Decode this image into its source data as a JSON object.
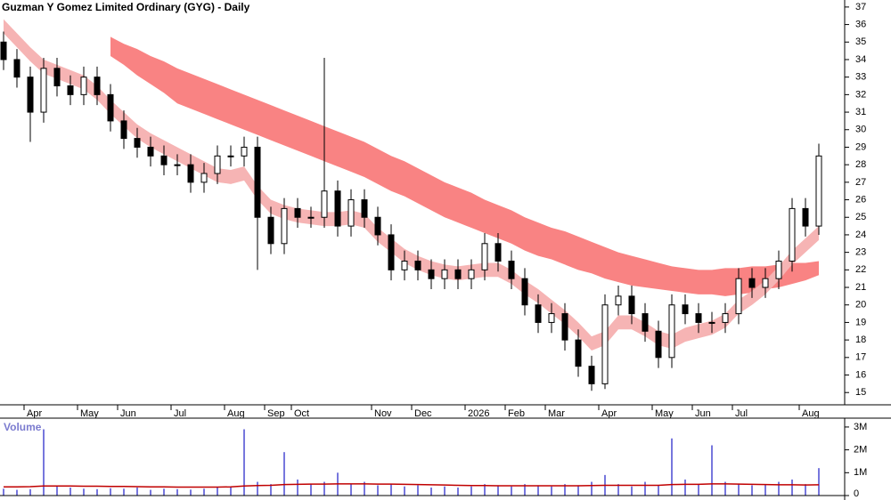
{
  "chart_data": [
    {
      "type": "candlestick",
      "title": "Guzman Y Gomez Limited Ordinary (GYG) - Daily",
      "categories": [
        null,
        null,
        "Apr",
        null,
        null,
        null,
        "May",
        null,
        null,
        "Jun",
        null,
        null,
        null,
        "Jul",
        null,
        null,
        null,
        "Aug",
        null,
        null,
        "Sep",
        null,
        "Oct",
        null,
        null,
        null,
        null,
        null,
        "Nov",
        null,
        null,
        "Dec",
        null,
        null,
        null,
        "2026",
        null,
        null,
        "Feb",
        null,
        null,
        "Mar",
        null,
        null,
        null,
        "Apr",
        null,
        null,
        null,
        "May",
        null,
        null,
        "Jun",
        null,
        null,
        "Jul",
        null,
        null,
        null,
        null,
        "Aug",
        null
      ],
      "open": [
        35,
        34,
        33,
        31,
        33.5,
        32.5,
        32,
        33,
        32,
        30.5,
        29.5,
        29,
        28.5,
        28,
        28,
        27,
        27.5,
        28.5,
        28.5,
        29,
        25,
        23.5,
        25.5,
        25,
        25,
        26.5,
        24.5,
        26,
        25,
        24,
        22,
        22.5,
        22,
        21.5,
        22,
        21.5,
        22,
        23.5,
        22.5,
        21.5,
        20,
        19,
        19.5,
        18,
        16.5,
        15.5,
        20,
        20.5,
        19.5,
        18.5,
        17,
        20,
        19.5,
        19,
        19,
        19.5,
        21.5,
        21,
        21.5,
        22.5,
        25.5,
        24.5
      ],
      "high": [
        35.6,
        34.6,
        33.6,
        34.1,
        34.1,
        33.1,
        33.6,
        33.6,
        32.6,
        31.1,
        30.1,
        29.6,
        29.1,
        28.6,
        28.6,
        28.1,
        29.1,
        29.1,
        29.6,
        29.6,
        25.6,
        26.1,
        26.1,
        25.6,
        34.1,
        27.1,
        26.6,
        26.6,
        25.6,
        24.6,
        23.1,
        23.1,
        22.6,
        22.6,
        22.6,
        22.6,
        24.1,
        24.1,
        23.1,
        22.1,
        20.6,
        20.1,
        20.1,
        18.6,
        17.1,
        20.6,
        21.1,
        21.1,
        20.1,
        19.1,
        20.6,
        20.6,
        20.1,
        19.6,
        20.1,
        22.1,
        22.1,
        22.1,
        23.1,
        26.1,
        26.1,
        29.2
      ],
      "low": [
        33.4,
        32.4,
        29.3,
        30.4,
        31.9,
        31.4,
        31.4,
        31.4,
        29.9,
        28.9,
        28.4,
        27.9,
        27.4,
        27.4,
        26.4,
        26.4,
        26.9,
        27.9,
        27.9,
        22,
        22.9,
        22.9,
        24.4,
        24.4,
        24.4,
        23.9,
        23.9,
        24.4,
        23.4,
        21.4,
        21.4,
        21.4,
        20.9,
        20.9,
        20.9,
        20.9,
        21.4,
        21.9,
        20.9,
        19.4,
        18.4,
        18.4,
        17.4,
        15.9,
        15.1,
        15.2,
        19.4,
        18.9,
        17.9,
        16.4,
        16.4,
        18.9,
        18.4,
        18.4,
        18.4,
        18.9,
        20.4,
        20.4,
        20.9,
        21.9,
        23.9,
        24
      ],
      "close": [
        34,
        33,
        31,
        33.5,
        32.5,
        32,
        33,
        32,
        30.5,
        29.5,
        29,
        28.5,
        28,
        28,
        27,
        27.5,
        28.5,
        28.5,
        29,
        25,
        23.5,
        25.5,
        25,
        25,
        26.5,
        24.5,
        26,
        25,
        24,
        22,
        22.5,
        22,
        21.5,
        22,
        21.5,
        22,
        23.5,
        22.5,
        21.5,
        20,
        19,
        19.5,
        18,
        16.5,
        15.5,
        20,
        20.5,
        19.5,
        18.5,
        17,
        20,
        19.5,
        19,
        19,
        19.5,
        21.5,
        21,
        21.5,
        22.5,
        25.5,
        24.5,
        28.5
      ],
      "bands": [
        {
          "color": "#f98383",
          "upper": [
            null,
            null,
            null,
            null,
            null,
            null,
            null,
            null,
            35.3,
            34.9,
            34.6,
            34.2,
            33.9,
            33.5,
            33.2,
            32.9,
            32.6,
            32.3,
            32,
            31.7,
            31.4,
            31.1,
            30.8,
            30.5,
            30.2,
            29.9,
            29.6,
            29.3,
            28.9,
            28.5,
            28.2,
            27.8,
            27.4,
            27,
            26.7,
            26.4,
            26,
            25.7,
            25.4,
            25,
            24.7,
            24.4,
            24.2,
            23.9,
            23.6,
            23.3,
            23,
            22.8,
            22.6,
            22.4,
            22.2,
            22.1,
            22,
            22,
            22.1,
            22.1,
            22.2,
            22.2,
            22.3,
            22.4,
            22.4,
            22.5
          ],
          "lower": [
            null,
            null,
            null,
            null,
            null,
            null,
            null,
            null,
            34.2,
            33.7,
            33.1,
            32.6,
            32.1,
            31.5,
            31.2,
            30.9,
            30.6,
            30.3,
            30,
            29.7,
            29.4,
            29.1,
            28.8,
            28.5,
            28.2,
            27.9,
            27.6,
            27.3,
            26.9,
            26.5,
            26.2,
            25.8,
            25.4,
            25,
            24.7,
            24.4,
            24.1,
            23.8,
            23.5,
            23.1,
            22.8,
            22.6,
            22.3,
            22,
            21.8,
            21.5,
            21.3,
            21.1,
            21,
            20.9,
            20.8,
            20.7,
            20.6,
            20.6,
            20.5,
            20.6,
            20.7,
            20.9,
            21,
            21.2,
            21.4,
            21.7
          ]
        },
        {
          "color": "#f6b4b4",
          "upper": [
            36.3,
            35.5,
            34.7,
            34,
            33.7,
            33.4,
            33.1,
            32.5,
            31.7,
            31,
            30.3,
            29.8,
            29.4,
            29,
            28.6,
            28.2,
            27.8,
            27.7,
            27.9,
            26.8,
            26,
            25.7,
            25.5,
            25.4,
            25.3,
            25.3,
            25.4,
            25.2,
            24.4,
            23.8,
            23.2,
            22.8,
            22.5,
            22.3,
            22.2,
            22.3,
            22.4,
            22.4,
            22,
            21.4,
            20.9,
            20.3,
            19.7,
            19,
            18.2,
            18.5,
            19.4,
            19.4,
            19,
            18.5,
            18.3,
            18.7,
            18.9,
            19.1,
            19.5,
            20.3,
            20.8,
            21.4,
            22.2,
            23.1,
            23.8,
            24.5
          ],
          "lower": [
            35.5,
            34.7,
            33.9,
            33.2,
            32.9,
            32.6,
            32.3,
            31.7,
            30.9,
            30.2,
            29.5,
            29,
            28.6,
            28.2,
            27.8,
            27.4,
            27,
            26.9,
            27.1,
            26,
            25.2,
            24.9,
            24.7,
            24.6,
            24.5,
            24.5,
            24.6,
            24.4,
            23.6,
            23,
            22.4,
            22,
            21.7,
            21.5,
            21.4,
            21.5,
            21.6,
            21.6,
            21.2,
            20.6,
            20.1,
            19.5,
            18.9,
            18.2,
            17.4,
            17.7,
            18.6,
            18.6,
            18.2,
            17.7,
            17.5,
            17.9,
            18.1,
            18.3,
            18.7,
            19.5,
            20,
            20.6,
            21.4,
            22.3,
            23,
            23.7
          ]
        }
      ],
      "ylim": [
        14.3,
        37.4
      ],
      "yticks": [
        15,
        16,
        17,
        18,
        19,
        20,
        21,
        22,
        23,
        24,
        25,
        26,
        27,
        28,
        29,
        30,
        31,
        32,
        33,
        34,
        35,
        36,
        37
      ]
    },
    {
      "type": "volume",
      "title": "Volume",
      "series": [
        {
          "color": "#7777dd",
          "values": [
            300000,
            250000,
            280000,
            2900000,
            400000,
            350000,
            300000,
            280000,
            320000,
            300000,
            350000,
            250000,
            300000,
            280000,
            260000,
            300000,
            350000,
            400000,
            2900000,
            600000,
            500000,
            1900000,
            700000,
            500000,
            600000,
            1000000,
            500000,
            600000,
            450000,
            500000,
            400000,
            450000,
            350000,
            400000,
            350000,
            400000,
            500000,
            450000,
            400000,
            500000,
            450000,
            400000,
            500000,
            450000,
            600000,
            900000,
            500000,
            400000,
            600000,
            450000,
            2500000,
            700000,
            500000,
            2200000,
            600000,
            500000,
            450000,
            500000,
            600000,
            700000,
            500000,
            1200000
          ]
        },
        {
          "color": "#c00000",
          "values": [
            380000,
            380000,
            390000,
            420000,
            420000,
            420000,
            410000,
            410000,
            400000,
            400000,
            390000,
            380000,
            380000,
            370000,
            370000,
            370000,
            370000,
            380000,
            420000,
            440000,
            450000,
            480000,
            490000,
            500000,
            500000,
            510000,
            510000,
            510000,
            500000,
            500000,
            490000,
            480000,
            470000,
            460000,
            450000,
            440000,
            440000,
            430000,
            430000,
            430000,
            430000,
            430000,
            430000,
            430000,
            440000,
            450000,
            450000,
            450000,
            450000,
            450000,
            480000,
            490000,
            490000,
            510000,
            510000,
            500000,
            490000,
            480000,
            470000,
            470000,
            460000,
            470000
          ]
        }
      ],
      "ylim": [
        0,
        3270000
      ],
      "yticks": [
        0,
        {
          "value": 1000000,
          "label": "1M"
        },
        {
          "value": 2000000,
          "label": "2M"
        },
        {
          "value": 3000000,
          "label": "3M"
        }
      ]
    }
  ]
}
